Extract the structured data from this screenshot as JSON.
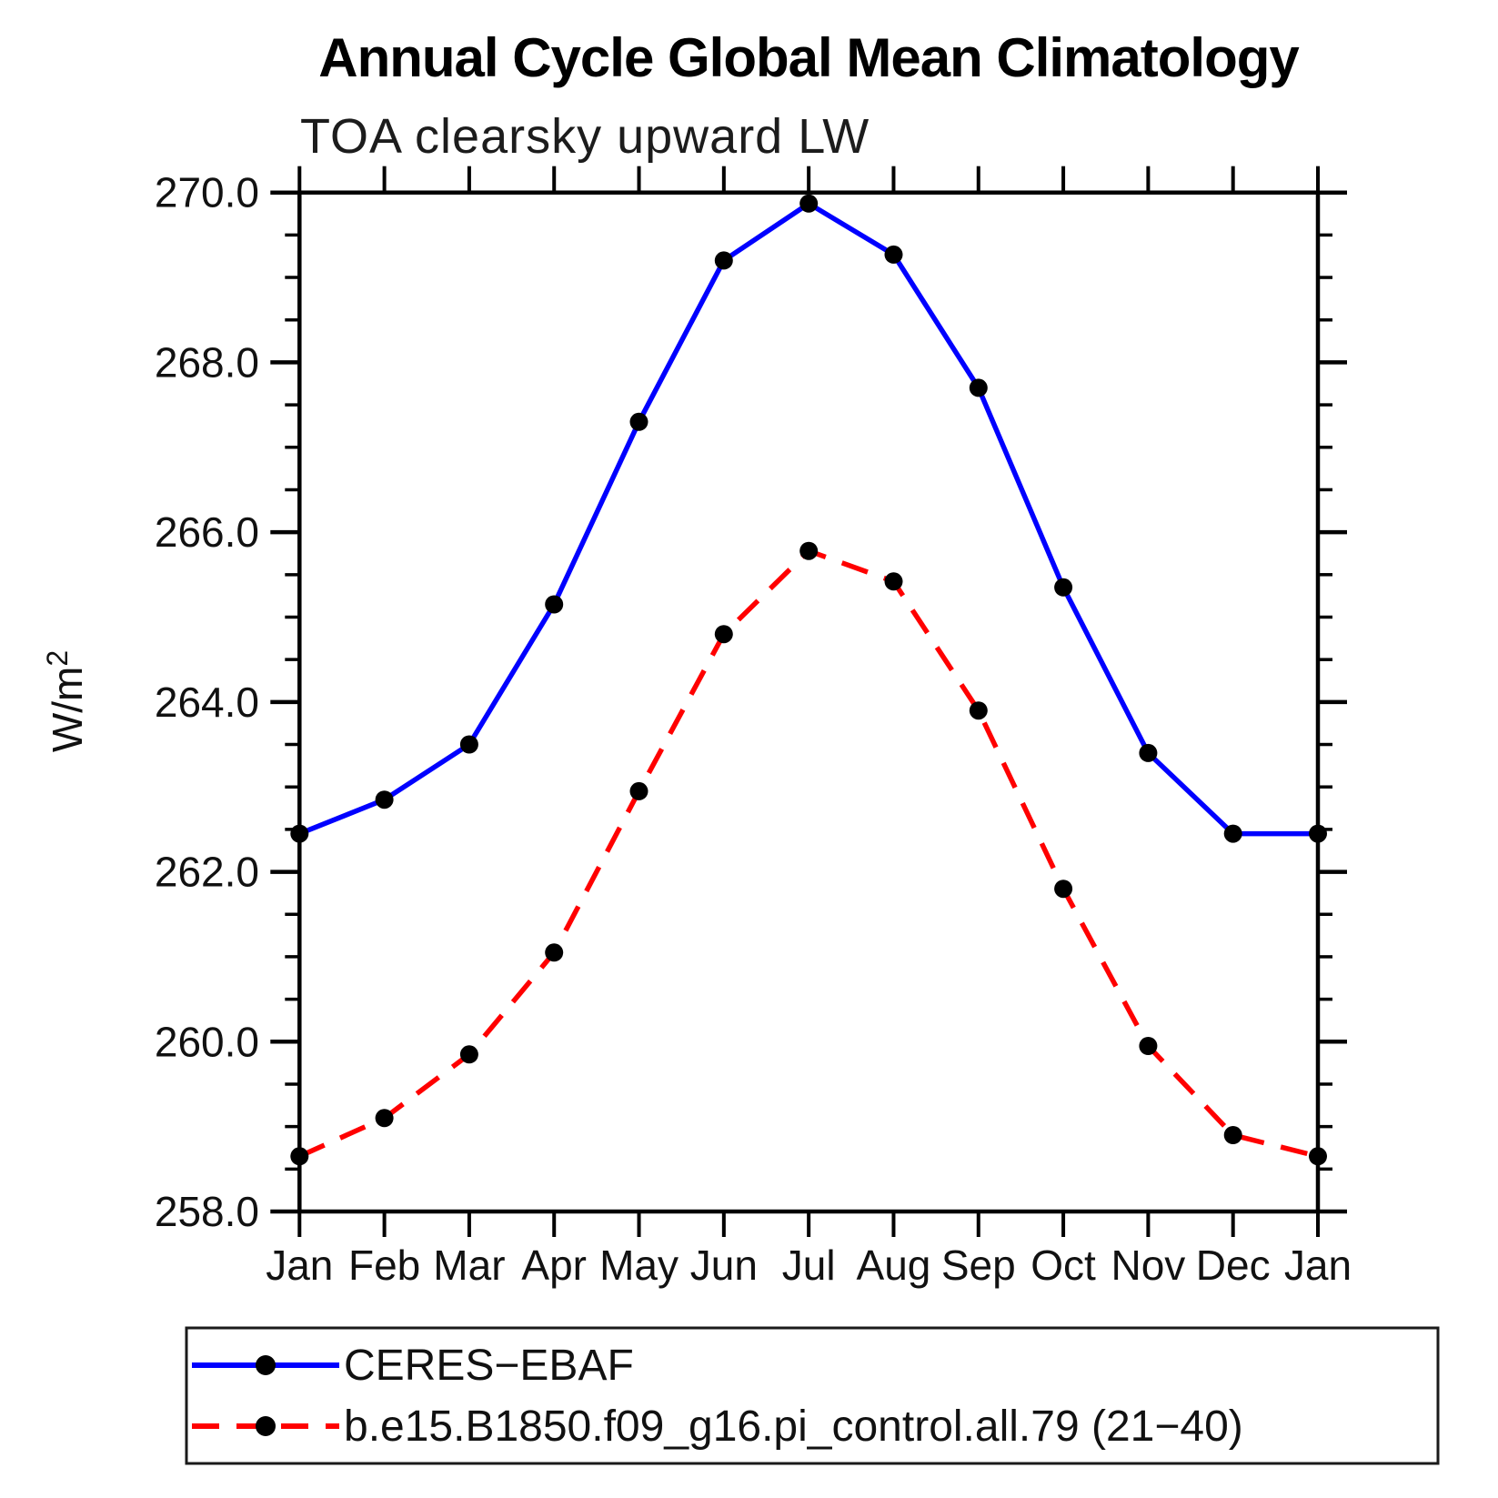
{
  "title": "Annual Cycle Global Mean Climatology",
  "subtitle": "TOA clearsky upward LW",
  "ylabel_base": "W/m",
  "ylabel_exp": "2",
  "colors": {
    "ceres_line": "#0000ff",
    "model_line": "#ff0000",
    "marker": "#000000",
    "axis": "#000000",
    "background": "#ffffff"
  },
  "chart_data": {
    "type": "line",
    "categories": [
      "Jan",
      "Feb",
      "Mar",
      "Apr",
      "May",
      "Jun",
      "Jul",
      "Aug",
      "Sep",
      "Oct",
      "Nov",
      "Dec",
      "Jan"
    ],
    "series": [
      {
        "name": "CERES−EBAF",
        "color": "#0000ff",
        "line_style": "solid",
        "marker": "circle",
        "marker_color": "#000000",
        "values": [
          262.45,
          262.85,
          263.5,
          265.15,
          267.3,
          269.2,
          269.87,
          269.27,
          267.7,
          265.35,
          263.4,
          262.45,
          262.45
        ]
      },
      {
        "name": "b.e15.B1850.f09_g16.pi_control.all.79 (21−40)",
        "color": "#ff0000",
        "line_style": "dashed",
        "marker": "circle",
        "marker_color": "#000000",
        "values": [
          258.65,
          259.1,
          259.85,
          261.05,
          262.95,
          264.8,
          265.78,
          265.42,
          263.9,
          261.8,
          259.95,
          258.9,
          258.65
        ]
      }
    ],
    "ylim": [
      258.0,
      270.0
    ],
    "y_ticks": [
      {
        "value": 258.0,
        "label": "258.0"
      },
      {
        "value": 260.0,
        "label": "260.0"
      },
      {
        "value": 262.0,
        "label": "262.0"
      },
      {
        "value": 264.0,
        "label": "264.0"
      },
      {
        "value": 266.0,
        "label": "266.0"
      },
      {
        "value": 268.0,
        "label": "268.0"
      },
      {
        "value": 270.0,
        "label": "270.0"
      }
    ],
    "y_minor_step": 0.5,
    "grid": false,
    "legend_position": "bottom-left"
  }
}
